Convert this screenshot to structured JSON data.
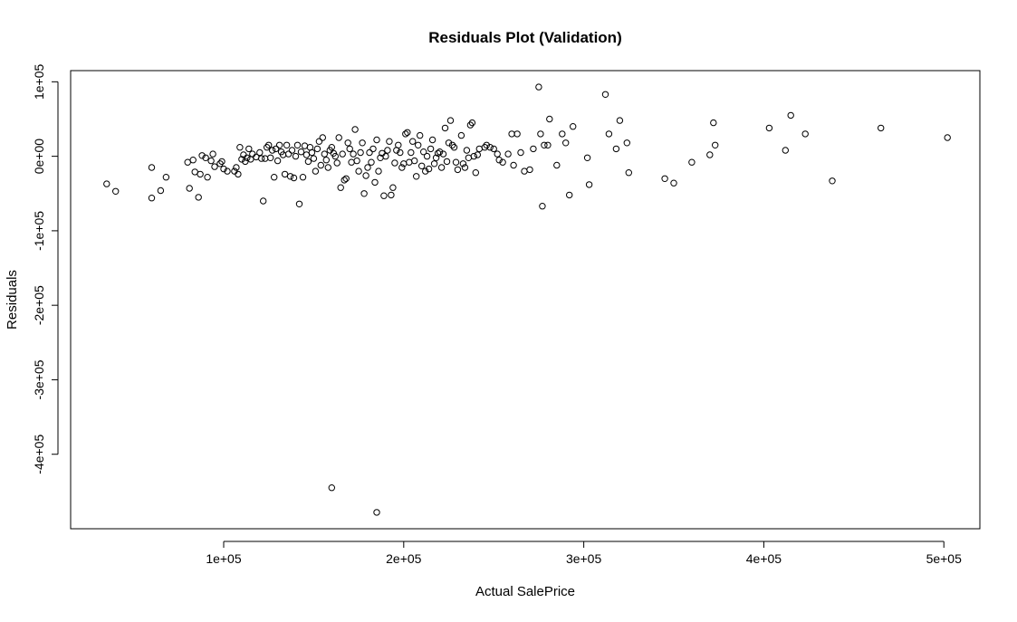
{
  "chart_data": {
    "type": "scatter",
    "title": "Residuals Plot (Validation)",
    "xlabel": "Actual SalePrice",
    "ylabel": "Residuals",
    "xlim": [
      15000,
      520000
    ],
    "ylim": [
      -500000,
      115000
    ],
    "xticks": [
      100000,
      200000,
      300000,
      400000,
      500000
    ],
    "xtick_labels": [
      "1e+05",
      "2e+05",
      "3e+05",
      "4e+05",
      "5e+05"
    ],
    "yticks": [
      100000,
      0,
      -100000,
      -200000,
      -300000,
      -400000
    ],
    "ytick_labels": [
      "1e+05",
      "0e+00",
      "-1e+05",
      "-2e+05",
      "-3e+05",
      "-4e+05"
    ],
    "grid": false,
    "legend": "none",
    "points": [
      [
        35000,
        -37000
      ],
      [
        40000,
        -47000
      ],
      [
        60000,
        -15000
      ],
      [
        60000,
        -56000
      ],
      [
        65000,
        -46000
      ],
      [
        68000,
        -28000
      ],
      [
        80000,
        -8000
      ],
      [
        81000,
        -43000
      ],
      [
        83000,
        -5000
      ],
      [
        84000,
        -21000
      ],
      [
        86000,
        -55000
      ],
      [
        87000,
        -24000
      ],
      [
        88000,
        1000
      ],
      [
        90000,
        -2000
      ],
      [
        91000,
        -28000
      ],
      [
        93000,
        -6000
      ],
      [
        94000,
        3000
      ],
      [
        95000,
        -14000
      ],
      [
        98000,
        -10000
      ],
      [
        99000,
        -7000
      ],
      [
        100000,
        -17000
      ],
      [
        102000,
        -20000
      ],
      [
        106000,
        -20000
      ],
      [
        107000,
        -15000
      ],
      [
        108000,
        -24000
      ],
      [
        109000,
        12000
      ],
      [
        110000,
        -4000
      ],
      [
        111000,
        2000
      ],
      [
        112000,
        -7000
      ],
      [
        113000,
        -2000
      ],
      [
        114000,
        10000
      ],
      [
        115000,
        -4000
      ],
      [
        116000,
        3000
      ],
      [
        118000,
        -1000
      ],
      [
        120000,
        5000
      ],
      [
        121000,
        -3000
      ],
      [
        122000,
        -60000
      ],
      [
        123000,
        -3000
      ],
      [
        124000,
        12000
      ],
      [
        125000,
        15000
      ],
      [
        126000,
        -2000
      ],
      [
        127000,
        8000
      ],
      [
        128000,
        -28000
      ],
      [
        129000,
        10000
      ],
      [
        130000,
        -6000
      ],
      [
        131000,
        15000
      ],
      [
        132000,
        6000
      ],
      [
        133000,
        2000
      ],
      [
        134000,
        -24000
      ],
      [
        135000,
        15000
      ],
      [
        136000,
        3000
      ],
      [
        137000,
        -27000
      ],
      [
        138000,
        8000
      ],
      [
        139000,
        -29000
      ],
      [
        140000,
        0
      ],
      [
        141000,
        15000
      ],
      [
        142000,
        -64000
      ],
      [
        143000,
        6000
      ],
      [
        144000,
        -28000
      ],
      [
        145000,
        14000
      ],
      [
        146000,
        2000
      ],
      [
        147000,
        -7000
      ],
      [
        148000,
        12000
      ],
      [
        149000,
        5000
      ],
      [
        150000,
        -3000
      ],
      [
        151000,
        -20000
      ],
      [
        152000,
        10000
      ],
      [
        153000,
        20000
      ],
      [
        154000,
        -12000
      ],
      [
        155000,
        25000
      ],
      [
        156000,
        3000
      ],
      [
        157000,
        -5000
      ],
      [
        158000,
        -15000
      ],
      [
        159000,
        8000
      ],
      [
        160000,
        12000
      ],
      [
        161000,
        4000
      ],
      [
        162000,
        0
      ],
      [
        163000,
        -9000
      ],
      [
        164000,
        25000
      ],
      [
        165000,
        -42000
      ],
      [
        166000,
        3000
      ],
      [
        167000,
        -32000
      ],
      [
        168000,
        -30000
      ],
      [
        169000,
        18000
      ],
      [
        170000,
        10000
      ],
      [
        171000,
        -8000
      ],
      [
        172000,
        3000
      ],
      [
        173000,
        36000
      ],
      [
        174000,
        -6000
      ],
      [
        175000,
        -20000
      ],
      [
        176000,
        5000
      ],
      [
        177000,
        18000
      ],
      [
        178000,
        -50000
      ],
      [
        179000,
        -26000
      ],
      [
        180000,
        -15000
      ],
      [
        181000,
        5000
      ],
      [
        182000,
        -8000
      ],
      [
        183000,
        10000
      ],
      [
        184000,
        -35000
      ],
      [
        185000,
        22000
      ],
      [
        186000,
        -20000
      ],
      [
        187000,
        -2000
      ],
      [
        188000,
        4000
      ],
      [
        189000,
        -53000
      ],
      [
        190000,
        0
      ],
      [
        191000,
        8000
      ],
      [
        192000,
        20000
      ],
      [
        193000,
        -52000
      ],
      [
        194000,
        -42000
      ],
      [
        195000,
        -9000
      ],
      [
        196000,
        8000
      ],
      [
        197000,
        15000
      ],
      [
        198000,
        5000
      ],
      [
        199000,
        -15000
      ],
      [
        200000,
        -10000
      ],
      [
        201000,
        30000
      ],
      [
        202000,
        32000
      ],
      [
        203000,
        -8000
      ],
      [
        204000,
        5000
      ],
      [
        205000,
        20000
      ],
      [
        206000,
        -6000
      ],
      [
        207000,
        -27000
      ],
      [
        208000,
        15000
      ],
      [
        209000,
        28000
      ],
      [
        210000,
        -13000
      ],
      [
        211000,
        6000
      ],
      [
        212000,
        -20000
      ],
      [
        213000,
        0
      ],
      [
        214000,
        -17000
      ],
      [
        215000,
        10000
      ],
      [
        216000,
        22000
      ],
      [
        217000,
        -10000
      ],
      [
        218000,
        -2000
      ],
      [
        219000,
        4000
      ],
      [
        220000,
        6000
      ],
      [
        221000,
        -15000
      ],
      [
        222000,
        3000
      ],
      [
        223000,
        38000
      ],
      [
        224000,
        -7000
      ],
      [
        225000,
        18000
      ],
      [
        226000,
        48000
      ],
      [
        227000,
        15000
      ],
      [
        228000,
        12000
      ],
      [
        229000,
        -8000
      ],
      [
        230000,
        -18000
      ],
      [
        232000,
        28000
      ],
      [
        233000,
        -10000
      ],
      [
        234000,
        -15000
      ],
      [
        235000,
        8000
      ],
      [
        236000,
        -2000
      ],
      [
        237000,
        42000
      ],
      [
        238000,
        45000
      ],
      [
        239000,
        0
      ],
      [
        240000,
        -22000
      ],
      [
        241000,
        2000
      ],
      [
        242000,
        10000
      ],
      [
        245000,
        12000
      ],
      [
        246000,
        15000
      ],
      [
        248000,
        12000
      ],
      [
        250000,
        10000
      ],
      [
        252000,
        3000
      ],
      [
        253000,
        -5000
      ],
      [
        255000,
        -8000
      ],
      [
        258000,
        3000
      ],
      [
        260000,
        30000
      ],
      [
        261000,
        -12000
      ],
      [
        263000,
        30000
      ],
      [
        265000,
        5000
      ],
      [
        267000,
        -20000
      ],
      [
        270000,
        -18000
      ],
      [
        272000,
        10000
      ],
      [
        275000,
        93000
      ],
      [
        276000,
        30000
      ],
      [
        277000,
        -67000
      ],
      [
        278000,
        15000
      ],
      [
        280000,
        15000
      ],
      [
        281000,
        50000
      ],
      [
        285000,
        -12000
      ],
      [
        288000,
        30000
      ],
      [
        290000,
        18000
      ],
      [
        292000,
        -52000
      ],
      [
        294000,
        40000
      ],
      [
        302000,
        -2000
      ],
      [
        303000,
        -38000
      ],
      [
        312000,
        83000
      ],
      [
        314000,
        30000
      ],
      [
        318000,
        10000
      ],
      [
        320000,
        48000
      ],
      [
        324000,
        18000
      ],
      [
        325000,
        -22000
      ],
      [
        345000,
        -30000
      ],
      [
        350000,
        -36000
      ],
      [
        360000,
        -8000
      ],
      [
        370000,
        2000
      ],
      [
        372000,
        45000
      ],
      [
        373000,
        15000
      ],
      [
        403000,
        38000
      ],
      [
        412000,
        8000
      ],
      [
        415000,
        55000
      ],
      [
        423000,
        30000
      ],
      [
        438000,
        -33000
      ],
      [
        465000,
        38000
      ],
      [
        502000,
        25000
      ],
      [
        160000,
        -445000
      ],
      [
        185000,
        -478000
      ]
    ]
  }
}
